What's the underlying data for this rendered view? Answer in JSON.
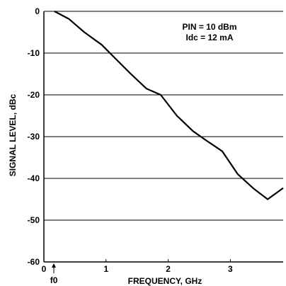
{
  "chart_data": {
    "type": "line",
    "xlabel": "FREQUENCY, GHz",
    "ylabel": "SIGNAL LEVEL, dBc",
    "xlim": [
      0,
      3.85
    ],
    "ylim": [
      -60,
      0
    ],
    "xticks": [
      {
        "value": 0,
        "label": "0"
      },
      {
        "value": 1,
        "label": "1"
      },
      {
        "value": 2,
        "label": "2"
      },
      {
        "value": 3,
        "label": "3"
      }
    ],
    "yticks": [
      {
        "value": 0,
        "label": "0"
      },
      {
        "value": -10,
        "label": "-10"
      },
      {
        "value": -20,
        "label": "-20"
      },
      {
        "value": -30,
        "label": "-30"
      },
      {
        "value": -40,
        "label": "-40"
      },
      {
        "value": -50,
        "label": "-50"
      },
      {
        "value": -60,
        "label": "-60"
      }
    ],
    "grid": "horizontal",
    "annotations": [
      "PIN = 10 dBm",
      "Idc = 12 mA"
    ],
    "marker": {
      "label": "f0",
      "x": 0.16
    },
    "series": [
      {
        "values": [
          {
            "x": 0.17,
            "y": 0
          },
          {
            "x": 0.4,
            "y": -1.8
          },
          {
            "x": 0.65,
            "y": -5
          },
          {
            "x": 0.93,
            "y": -8
          },
          {
            "x": 1.13,
            "y": -11
          },
          {
            "x": 1.4,
            "y": -15
          },
          {
            "x": 1.65,
            "y": -18.5
          },
          {
            "x": 1.88,
            "y": -20
          },
          {
            "x": 2.14,
            "y": -25
          },
          {
            "x": 2.4,
            "y": -28.7
          },
          {
            "x": 2.62,
            "y": -31
          },
          {
            "x": 2.87,
            "y": -33.5
          },
          {
            "x": 3.12,
            "y": -39
          },
          {
            "x": 3.38,
            "y": -42.5
          },
          {
            "x": 3.6,
            "y": -45
          },
          {
            "x": 3.85,
            "y": -42.3
          }
        ]
      }
    ]
  }
}
